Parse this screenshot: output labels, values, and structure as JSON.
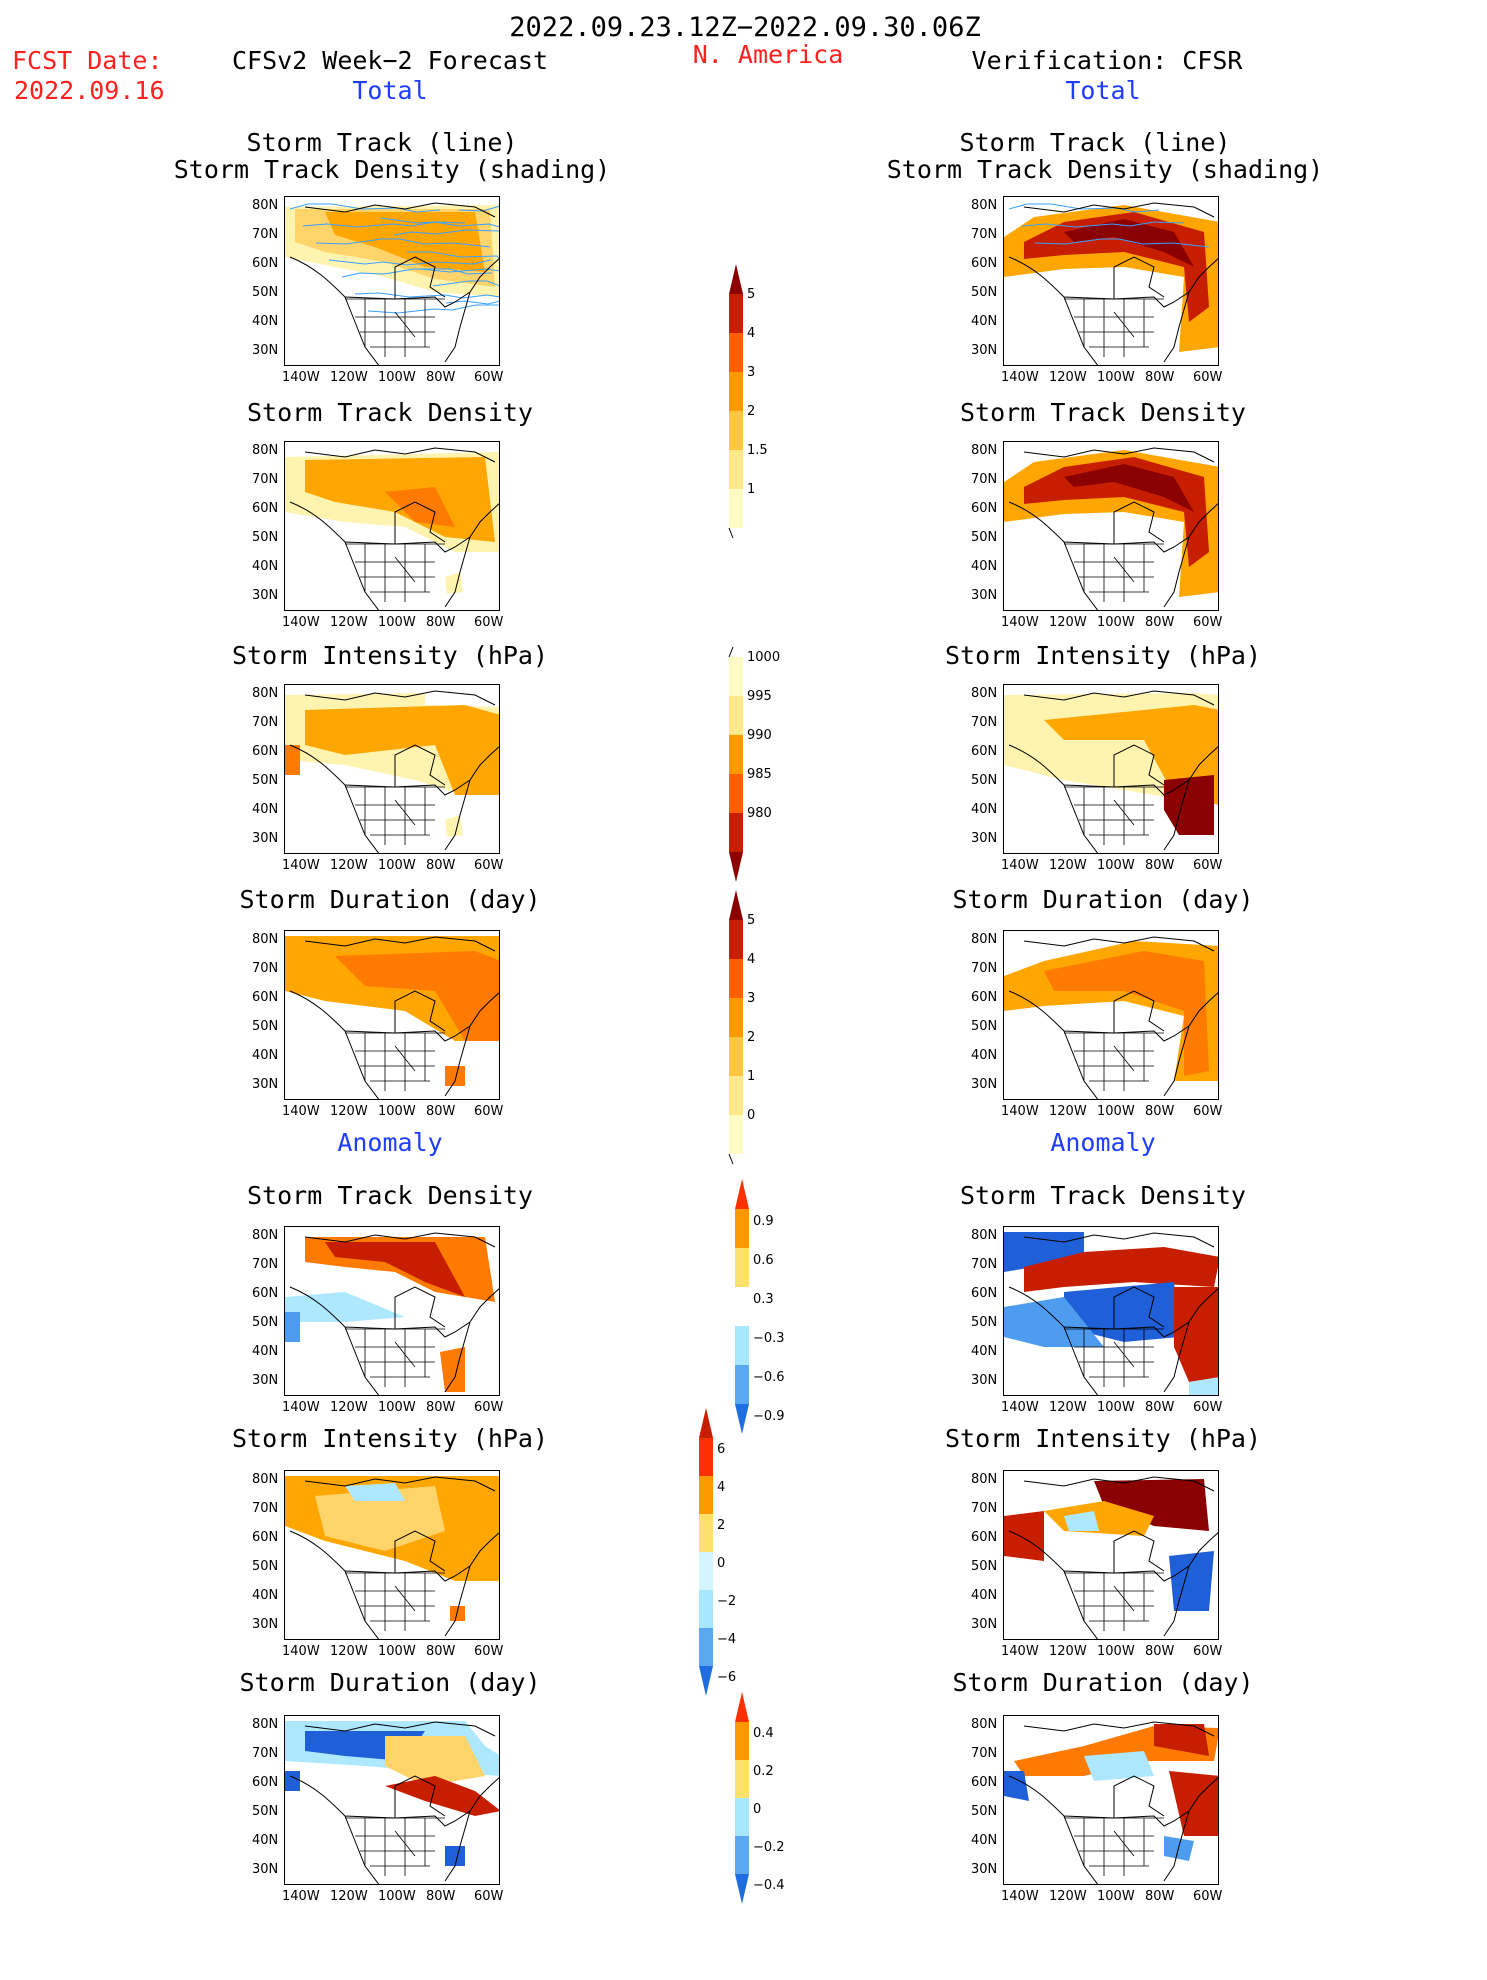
{
  "header": {
    "date_range": "2022.09.23.12Z−2022.09.30.06Z",
    "region": "N. America",
    "fcst_label": "FCST Date:",
    "fcst_date": "2022.09.16",
    "left_title": "CFSv2 Week−2 Forecast",
    "right_title": "Verification: CFSR",
    "total_label": "Total",
    "anomaly_label": "Anomaly"
  },
  "panel_titles": {
    "track_line": "Storm Track (line)",
    "track_shading": "Storm Track Density (shading)",
    "density": "Storm Track Density",
    "intensity": "Storm Intensity (hPa)",
    "duration": "Storm Duration (day)"
  },
  "axes": {
    "lat_ticks": [
      "80N",
      "70N",
      "60N",
      "50N",
      "40N",
      "30N"
    ],
    "lon_ticks": [
      "140W",
      "120W",
      "100W",
      "80W",
      "60W"
    ]
  },
  "colorbars": {
    "density": {
      "ticks": [
        "5",
        "4",
        "3",
        "2",
        "1.5",
        "1"
      ],
      "colors": [
        "#8b0000",
        "#c81e00",
        "#ff5f00",
        "#ff9900",
        "#ffc640",
        "#ffe98a",
        "#fffbc4"
      ]
    },
    "intensity": {
      "ticks": [
        "1000",
        "995",
        "990",
        "985",
        "980"
      ],
      "colors": [
        "#fffbc4",
        "#ffe98a",
        "#ff9900",
        "#ff5f00",
        "#c81e00",
        "#8b0000"
      ]
    },
    "duration": {
      "ticks": [
        "5",
        "4",
        "3",
        "2",
        "1",
        "0"
      ],
      "colors": [
        "#8b0000",
        "#c81e00",
        "#ff5f00",
        "#ff9900",
        "#ffc640",
        "#ffe98a",
        "#fffbc4"
      ]
    },
    "anom_density": {
      "ticks": [
        "0.9",
        "0.6",
        "0.3",
        "−0.3",
        "−0.6",
        "−0.9"
      ],
      "colors": [
        "#ff3000",
        "#ff9900",
        "#ffe06a",
        "#ffffff",
        "#a8e8ff",
        "#5aa8f0",
        "#1f6ee0"
      ]
    },
    "anom_intensity": {
      "ticks": [
        "6",
        "4",
        "2",
        "0",
        "−2",
        "−4",
        "−6"
      ],
      "colors": [
        "#c81e00",
        "#ff3000",
        "#ff9900",
        "#ffe06a",
        "#d4f4ff",
        "#a8e8ff",
        "#5aa8f0",
        "#1f6ee0"
      ]
    },
    "anom_duration": {
      "ticks": [
        "0.4",
        "0.2",
        "0",
        "−0.2",
        "−0.4"
      ],
      "colors": [
        "#ff3000",
        "#ff9900",
        "#ffe06a",
        "#a8e8ff",
        "#5aa8f0",
        "#1f6ee0"
      ]
    }
  },
  "palette": {
    "dark_red": "#8b0000",
    "red": "#c81e00",
    "orange": "#ff7a00",
    "orange_light": "#ffa600",
    "yellow": "#ffd46a",
    "pale_yellow": "#fff3b0",
    "blue_dark": "#1f5fd8",
    "blue": "#4d9cf0",
    "blue_light": "#aee8ff",
    "track_line": "#3aa0ff"
  }
}
